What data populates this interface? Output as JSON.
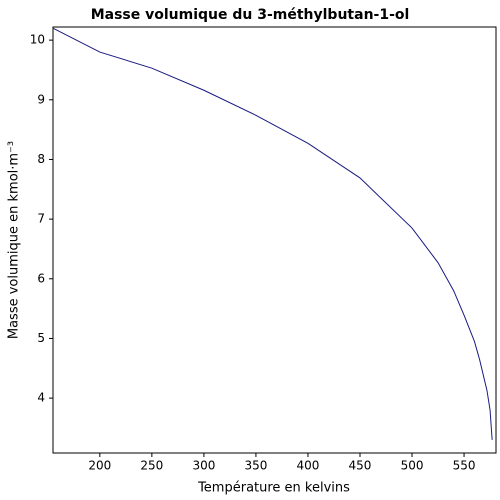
{
  "chart_data": {
    "type": "line",
    "title": "Masse volumique du 3-méthylbutan-1-ol",
    "x_label": "Température en kelvins",
    "y_label": "Masse volumique en kmol·m⁻³",
    "x": [
      155,
      200,
      250,
      300,
      350,
      400,
      450,
      500,
      525,
      540,
      550,
      560,
      565,
      572,
      575,
      577
    ],
    "series": [
      {
        "name": "3-méthylbutan-1-ol",
        "color": "#1a1a80",
        "values": [
          10.2,
          9.8,
          9.53,
          9.16,
          8.74,
          8.27,
          7.69,
          6.85,
          6.27,
          5.8,
          5.39,
          4.95,
          4.64,
          4.13,
          3.8,
          3.3
        ]
      }
    ],
    "xlim": [
      155,
      580.7
    ],
    "xticks": [
      200,
      250,
      300,
      350,
      400,
      450,
      500,
      550
    ],
    "ylim": [
      3.08,
      10.22
    ],
    "yticks": [
      4,
      5,
      6,
      7,
      8,
      9,
      10
    ],
    "grid": false
  }
}
